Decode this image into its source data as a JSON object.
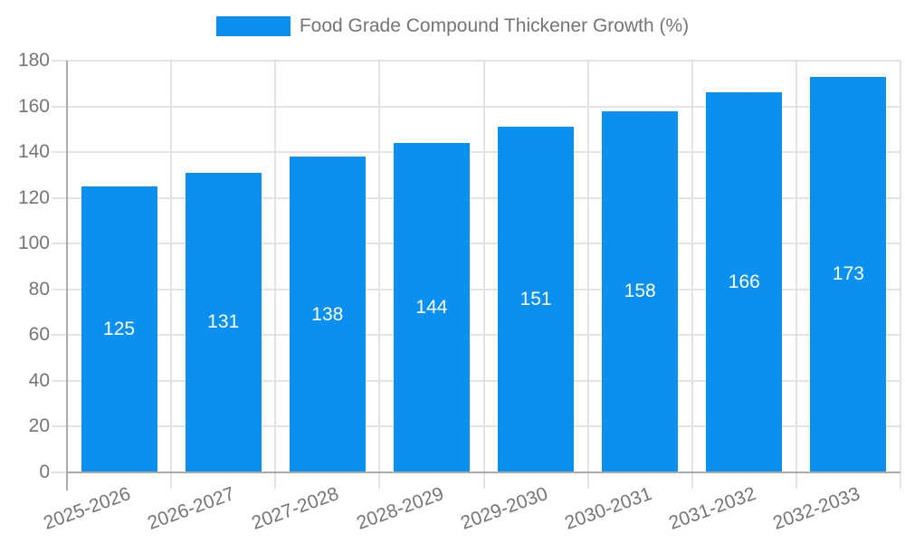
{
  "legend": {
    "label": "Food Grade Compound Thickener Growth (%)"
  },
  "colors": {
    "bar": "#0a90f0",
    "grid_line": "#e3e3e3",
    "axis_line": "#ababab",
    "axis_text": "#757575",
    "value_label": "#ffffff",
    "background": "#ffffff"
  },
  "chart_data": {
    "type": "bar",
    "title": "Food Grade Compound Thickener Growth (%)",
    "categories": [
      "2025-2026",
      "2026-2027",
      "2027-2028",
      "2028-2029",
      "2029-2030",
      "2030-2031",
      "2031-2032",
      "2032-2033"
    ],
    "values": [
      125,
      131,
      138,
      144,
      151,
      158,
      166,
      173
    ],
    "xlabel": "",
    "ylabel": "",
    "ylim": [
      0,
      180
    ],
    "ytick_step": 20,
    "yticks": [
      0,
      20,
      40,
      60,
      80,
      100,
      120,
      140,
      160,
      180
    ],
    "grid": true,
    "legend_position": "top",
    "bar_labels_inside": true,
    "x_tick_rotation_deg": -20
  }
}
